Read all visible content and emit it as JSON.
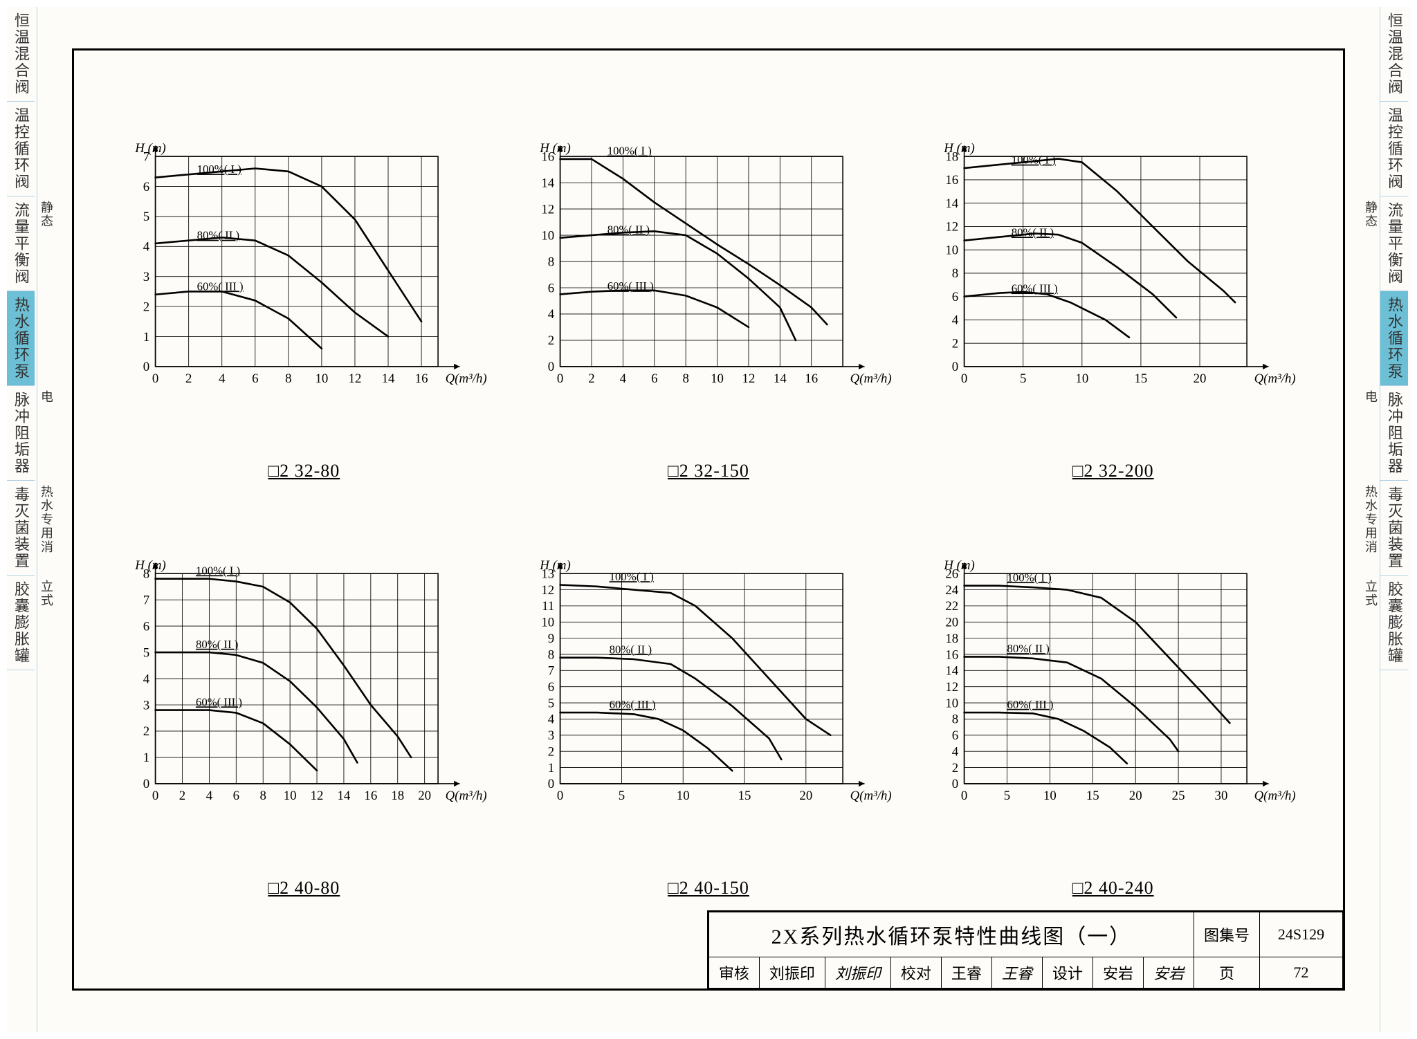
{
  "style": {
    "line_color": "#000000",
    "grid_color": "#000000",
    "background": "#fefcf8",
    "tab_active_bg": "#6cbfd4",
    "tab_border": "#b0d0e0",
    "axis_fontsize": 18,
    "title_fontsize": 26,
    "curve_width": 2.5,
    "grid_width": 0.8
  },
  "side_tabs": [
    {
      "label": "恒温混合阀",
      "active": false
    },
    {
      "label": "温控循环阀",
      "active": false
    },
    {
      "label": "流量平衡阀",
      "active": false,
      "sub": "静态"
    },
    {
      "label": "热水循环泵",
      "active": true
    },
    {
      "label": "脉冲阻垢器",
      "active": false,
      "sub": "电"
    },
    {
      "label": "毒灭菌装置",
      "active": false,
      "sub": "热水专用消"
    },
    {
      "label": "胶囊膨胀罐",
      "active": false,
      "sub": "立式"
    }
  ],
  "charts": [
    {
      "title": "□2 32-80",
      "ylabel": "H (m)",
      "xlabel": "Q(m³/h)",
      "xlim": [
        0,
        17
      ],
      "ylim": [
        0,
        7
      ],
      "xticks": [
        0,
        2,
        4,
        6,
        8,
        10,
        12,
        14,
        16
      ],
      "yticks": [
        0,
        1,
        2,
        3,
        4,
        5,
        6,
        7
      ],
      "curves": [
        {
          "label": "100%( I )",
          "label_x": 2.5,
          "points": [
            [
              0,
              6.3
            ],
            [
              2,
              6.4
            ],
            [
              4,
              6.5
            ],
            [
              6,
              6.6
            ],
            [
              8,
              6.5
            ],
            [
              10,
              6.0
            ],
            [
              12,
              4.9
            ],
            [
              14,
              3.2
            ],
            [
              16,
              1.5
            ]
          ]
        },
        {
          "label": "80%( II )",
          "label_x": 2.5,
          "points": [
            [
              0,
              4.1
            ],
            [
              2,
              4.2
            ],
            [
              4,
              4.3
            ],
            [
              6,
              4.2
            ],
            [
              8,
              3.7
            ],
            [
              10,
              2.8
            ],
            [
              12,
              1.8
            ],
            [
              14,
              1.0
            ]
          ]
        },
        {
          "label": "60%( III )",
          "label_x": 2.5,
          "points": [
            [
              0,
              2.4
            ],
            [
              2,
              2.5
            ],
            [
              4,
              2.5
            ],
            [
              6,
              2.2
            ],
            [
              8,
              1.6
            ],
            [
              10,
              0.6
            ]
          ]
        }
      ]
    },
    {
      "title": "□2 32-150",
      "ylabel": "H (m)",
      "xlabel": "Q(m³/h)",
      "xlim": [
        0,
        18
      ],
      "ylim": [
        0,
        16
      ],
      "xticks": [
        0,
        2,
        4,
        6,
        8,
        10,
        12,
        14,
        16
      ],
      "yticks": [
        0,
        2,
        4,
        6,
        8,
        10,
        12,
        14,
        16
      ],
      "curves": [
        {
          "label": "100%( I )",
          "label_x": 3,
          "points": [
            [
              0,
              15.8
            ],
            [
              2,
              15.8
            ],
            [
              4,
              14.3
            ],
            [
              6,
              12.5
            ],
            [
              8,
              10.9
            ],
            [
              10,
              9.3
            ],
            [
              12,
              7.8
            ],
            [
              14,
              6.2
            ],
            [
              16,
              4.5
            ],
            [
              17,
              3.2
            ]
          ]
        },
        {
          "label": "80%( II )",
          "label_x": 3,
          "points": [
            [
              0,
              9.8
            ],
            [
              2,
              10.0
            ],
            [
              4,
              10.2
            ],
            [
              6,
              10.3
            ],
            [
              8,
              10.0
            ],
            [
              10,
              8.6
            ],
            [
              12,
              6.7
            ],
            [
              14,
              4.5
            ],
            [
              15,
              2.0
            ]
          ]
        },
        {
          "label": "60%( III )",
          "label_x": 3,
          "points": [
            [
              0,
              5.5
            ],
            [
              2,
              5.7
            ],
            [
              4,
              5.8
            ],
            [
              6,
              5.8
            ],
            [
              8,
              5.4
            ],
            [
              10,
              4.5
            ],
            [
              12,
              3.0
            ]
          ]
        }
      ]
    },
    {
      "title": "□2 32-200",
      "ylabel": "H (m)",
      "xlabel": "Q(m³/h)",
      "xlim": [
        0,
        24
      ],
      "ylim": [
        0,
        18
      ],
      "xticks": [
        0,
        5,
        10,
        15,
        20
      ],
      "yticks": [
        0,
        2,
        4,
        6,
        8,
        10,
        12,
        14,
        16,
        18
      ],
      "curves": [
        {
          "label": "100%( I )",
          "label_x": 4,
          "points": [
            [
              0,
              17.0
            ],
            [
              3,
              17.3
            ],
            [
              6,
              17.6
            ],
            [
              8,
              17.8
            ],
            [
              10,
              17.5
            ],
            [
              13,
              15.0
            ],
            [
              16,
              12.0
            ],
            [
              19,
              9.0
            ],
            [
              22,
              6.5
            ],
            [
              23,
              5.5
            ]
          ]
        },
        {
          "label": "80%( II )",
          "label_x": 4,
          "points": [
            [
              0,
              10.8
            ],
            [
              3,
              11.1
            ],
            [
              6,
              11.4
            ],
            [
              8,
              11.3
            ],
            [
              10,
              10.6
            ],
            [
              13,
              8.5
            ],
            [
              16,
              6.2
            ],
            [
              18,
              4.2
            ]
          ]
        },
        {
          "label": "60%( III )",
          "label_x": 4,
          "points": [
            [
              0,
              6.0
            ],
            [
              3,
              6.3
            ],
            [
              5,
              6.4
            ],
            [
              7,
              6.2
            ],
            [
              9,
              5.5
            ],
            [
              12,
              4.0
            ],
            [
              14,
              2.5
            ]
          ]
        }
      ]
    },
    {
      "title": "□2 40-80",
      "ylabel": "H (m)",
      "xlabel": "Q(m³/h)",
      "xlim": [
        0,
        21
      ],
      "ylim": [
        0,
        8
      ],
      "xticks": [
        0,
        2,
        4,
        6,
        8,
        10,
        12,
        14,
        16,
        18,
        20
      ],
      "yticks": [
        0,
        1,
        2,
        3,
        4,
        5,
        6,
        7,
        8
      ],
      "curves": [
        {
          "label": "100%( I )",
          "label_x": 3,
          "points": [
            [
              0,
              7.8
            ],
            [
              2,
              7.8
            ],
            [
              4,
              7.8
            ],
            [
              6,
              7.7
            ],
            [
              8,
              7.5
            ],
            [
              10,
              6.9
            ],
            [
              12,
              5.9
            ],
            [
              14,
              4.5
            ],
            [
              16,
              3.0
            ],
            [
              18,
              1.8
            ],
            [
              19,
              1.0
            ]
          ]
        },
        {
          "label": "80%( II )",
          "label_x": 3,
          "points": [
            [
              0,
              5.0
            ],
            [
              2,
              5.0
            ],
            [
              4,
              5.0
            ],
            [
              6,
              4.9
            ],
            [
              8,
              4.6
            ],
            [
              10,
              3.9
            ],
            [
              12,
              2.9
            ],
            [
              14,
              1.7
            ],
            [
              15,
              0.8
            ]
          ]
        },
        {
          "label": "60%( III )",
          "label_x": 3,
          "points": [
            [
              0,
              2.8
            ],
            [
              2,
              2.8
            ],
            [
              4,
              2.8
            ],
            [
              6,
              2.7
            ],
            [
              8,
              2.3
            ],
            [
              10,
              1.5
            ],
            [
              12,
              0.5
            ]
          ]
        }
      ]
    },
    {
      "title": "□2 40-150",
      "ylabel": "H (m)",
      "xlabel": "Q(m³/h)",
      "xlim": [
        0,
        23
      ],
      "ylim": [
        0,
        13
      ],
      "xticks": [
        0,
        5,
        10,
        15,
        20
      ],
      "yticks": [
        0,
        1,
        2,
        3,
        4,
        5,
        6,
        7,
        8,
        9,
        10,
        11,
        12,
        13
      ],
      "curves": [
        {
          "label": "100%( I )",
          "label_x": 4,
          "points": [
            [
              0,
              12.3
            ],
            [
              3,
              12.2
            ],
            [
              6,
              12.0
            ],
            [
              9,
              11.8
            ],
            [
              11,
              11.0
            ],
            [
              14,
              9.0
            ],
            [
              17,
              6.5
            ],
            [
              20,
              4.0
            ],
            [
              22,
              3.0
            ]
          ]
        },
        {
          "label": "80%( II )",
          "label_x": 4,
          "points": [
            [
              0,
              7.8
            ],
            [
              3,
              7.8
            ],
            [
              6,
              7.7
            ],
            [
              9,
              7.4
            ],
            [
              11,
              6.5
            ],
            [
              14,
              4.8
            ],
            [
              17,
              2.8
            ],
            [
              18,
              1.5
            ]
          ]
        },
        {
          "label": "60%( III )",
          "label_x": 4,
          "points": [
            [
              0,
              4.4
            ],
            [
              3,
              4.4
            ],
            [
              6,
              4.3
            ],
            [
              8,
              4.0
            ],
            [
              10,
              3.3
            ],
            [
              12,
              2.2
            ],
            [
              14,
              0.8
            ]
          ]
        }
      ]
    },
    {
      "title": "□2 40-240",
      "ylabel": "H (m)",
      "xlabel": "Q(m³/h)",
      "xlim": [
        0,
        33
      ],
      "ylim": [
        0,
        26
      ],
      "xticks": [
        0,
        5,
        10,
        15,
        20,
        25,
        30
      ],
      "yticks": [
        0,
        2,
        4,
        6,
        8,
        10,
        12,
        14,
        16,
        18,
        20,
        22,
        24,
        26
      ],
      "curves": [
        {
          "label": "100%( I )",
          "label_x": 5,
          "points": [
            [
              0,
              24.5
            ],
            [
              4,
              24.5
            ],
            [
              8,
              24.3
            ],
            [
              12,
              24.0
            ],
            [
              16,
              23.0
            ],
            [
              20,
              20.0
            ],
            [
              24,
              15.5
            ],
            [
              28,
              11.0
            ],
            [
              31,
              7.5
            ]
          ]
        },
        {
          "label": "80%( II )",
          "label_x": 5,
          "points": [
            [
              0,
              15.7
            ],
            [
              4,
              15.7
            ],
            [
              8,
              15.5
            ],
            [
              12,
              15.0
            ],
            [
              16,
              13.0
            ],
            [
              20,
              9.5
            ],
            [
              24,
              5.5
            ],
            [
              25,
              4.0
            ]
          ]
        },
        {
          "label": "60%( III )",
          "label_x": 5,
          "points": [
            [
              0,
              8.8
            ],
            [
              4,
              8.8
            ],
            [
              8,
              8.7
            ],
            [
              11,
              8.0
            ],
            [
              14,
              6.5
            ],
            [
              17,
              4.5
            ],
            [
              19,
              2.5
            ]
          ]
        }
      ]
    }
  ],
  "title_block": {
    "main_title": "2X系列热水循环泵特性曲线图（一）",
    "drawing_set_label": "图集号",
    "drawing_set_value": "24S129",
    "page_label": "页",
    "page_value": "72",
    "fields": [
      {
        "label": "审核",
        "name": "刘振印",
        "sig": "刘振印"
      },
      {
        "label": "校对",
        "name": "王睿",
        "sig": "王睿"
      },
      {
        "label": "设计",
        "name": "安岩",
        "sig": "安岩"
      }
    ]
  }
}
